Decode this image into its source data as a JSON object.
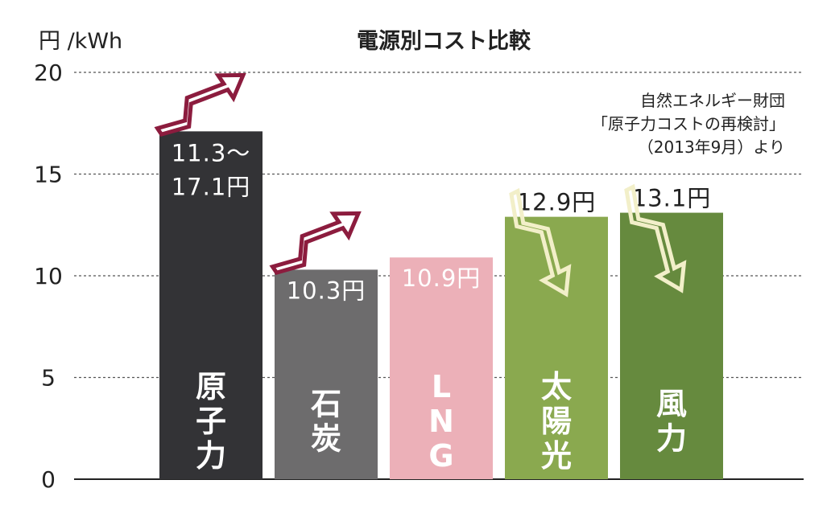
{
  "chart_data": {
    "type": "bar",
    "title": "電源別コスト比較",
    "ylabel": "円 /kWh",
    "ylim": [
      0,
      20
    ],
    "yticks": [
      "0",
      "5",
      "10",
      "15",
      "20"
    ],
    "grid": true,
    "categories": [
      "原子力",
      "石炭",
      "LNG",
      "太陽光",
      "風力"
    ],
    "values": [
      17.1,
      10.3,
      10.9,
      12.9,
      13.1
    ],
    "value_labels": [
      "11.3〜\n17.1円",
      "10.3円",
      "10.9円",
      "12.9円",
      "13.1円"
    ],
    "bar_colors": [
      "#333336",
      "#6d6c6d",
      "#ecb0b8",
      "#8aa94f",
      "#668a3e"
    ],
    "label_colors": [
      "#ffffff",
      "#ffffff",
      "#ffffff",
      "#222222",
      "#222222"
    ],
    "trend_arrows": [
      "up",
      "up",
      "none",
      "down",
      "down"
    ],
    "arrow_colors": {
      "up": "#8c1c3e",
      "down": "#f2efc9"
    },
    "source_note": [
      "自然エネルギー財団",
      "「原子力コストの再検討」",
      "（2013年9月）より"
    ]
  }
}
